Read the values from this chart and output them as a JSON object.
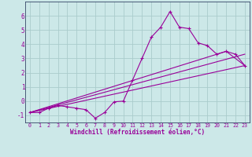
{
  "title": "",
  "xlabel": "Windchill (Refroidissement éolien,°C)",
  "bg_color": "#cce8e8",
  "grid_color": "#aacccc",
  "line_color": "#990099",
  "spine_color": "#336699",
  "xlim": [
    -0.5,
    23.5
  ],
  "ylim": [
    -1.5,
    7.0
  ],
  "xticks": [
    0,
    1,
    2,
    3,
    4,
    5,
    6,
    7,
    8,
    9,
    10,
    11,
    12,
    13,
    14,
    15,
    16,
    17,
    18,
    19,
    20,
    21,
    22,
    23
  ],
  "yticks": [
    -1,
    0,
    1,
    2,
    3,
    4,
    5,
    6
  ],
  "line1_x": [
    0,
    1,
    2,
    3,
    4,
    5,
    6,
    7,
    8,
    9,
    10,
    11,
    12,
    13,
    14,
    15,
    16,
    17,
    18,
    19,
    20,
    21,
    22,
    23
  ],
  "line1_y": [
    -0.8,
    -0.8,
    -0.5,
    -0.3,
    -0.4,
    -0.5,
    -0.6,
    -1.2,
    -0.8,
    -0.05,
    0.0,
    1.5,
    3.0,
    4.5,
    5.2,
    6.3,
    5.2,
    5.1,
    4.1,
    3.9,
    3.3,
    3.5,
    3.3,
    2.5
  ],
  "line2_x": [
    0,
    23
  ],
  "line2_y": [
    -0.8,
    2.5
  ],
  "line3_x": [
    0,
    23
  ],
  "line3_y": [
    -0.8,
    3.3
  ],
  "line4_x": [
    0,
    21,
    23
  ],
  "line4_y": [
    -0.8,
    3.5,
    2.5
  ]
}
